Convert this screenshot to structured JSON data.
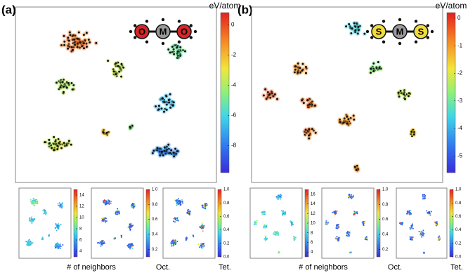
{
  "panels": [
    {
      "label": "(a)",
      "main": {
        "colorbar": {
          "title": "eV/atom",
          "lim": [
            -9.8,
            0.8
          ],
          "ticks": [
            0,
            -2,
            -4,
            -6,
            -8
          ]
        },
        "molecule": [
          "O",
          "M",
          "O"
        ],
        "molecule_color": "#d62728"
      },
      "small": [
        {
          "label": "# of neighbors",
          "colorbar": {
            "lim": [
              3,
              15
            ],
            "ticks": [
              4,
              6,
              8,
              10,
              12,
              14
            ]
          }
        },
        {
          "label": "Oct.",
          "colorbar": {
            "lim": [
              0.1,
              1
            ],
            "ticks": [
              0.2,
              0.4,
              0.6,
              0.8,
              {
                "value": 1,
                "label": "1.0"
              }
            ]
          }
        },
        {
          "label": "Tet.",
          "colorbar": {
            "lim": [
              0,
              1
            ],
            "ticks": [
              {
                "value": 0,
                "label": "0.0"
              },
              0.2,
              0.4,
              0.6,
              0.8,
              {
                "value": 1,
                "label": "1.0"
              }
            ]
          }
        }
      ]
    },
    {
      "label": "(b)",
      "main": {
        "colorbar": {
          "title": "eV/atom",
          "lim": [
            -5.6,
            0.2
          ],
          "ticks": [
            0,
            -1,
            -2,
            -3,
            -4,
            -5
          ]
        },
        "molecule": [
          "S",
          "M",
          "S"
        ],
        "molecule_color": "#f2dc3a"
      },
      "small": [
        {
          "label": "# of neighbors",
          "colorbar": {
            "lim": [
              3,
              17
            ],
            "ticks": [
              4,
              6,
              8,
              10,
              12,
              14,
              16
            ]
          }
        },
        {
          "label": "Oct.",
          "colorbar": {
            "lim": [
              0.1,
              1
            ],
            "ticks": [
              0.2,
              0.4,
              0.6,
              0.8,
              {
                "value": 1,
                "label": "1.0"
              }
            ]
          }
        },
        {
          "label": "Tet.",
          "colorbar": {
            "lim": [
              0,
              1
            ],
            "ticks": [
              {
                "value": 0,
                "label": "0.0"
              },
              0.2,
              0.4,
              0.6,
              0.8,
              {
                "value": 1,
                "label": "1.0"
              }
            ]
          }
        }
      ]
    }
  ]
}
